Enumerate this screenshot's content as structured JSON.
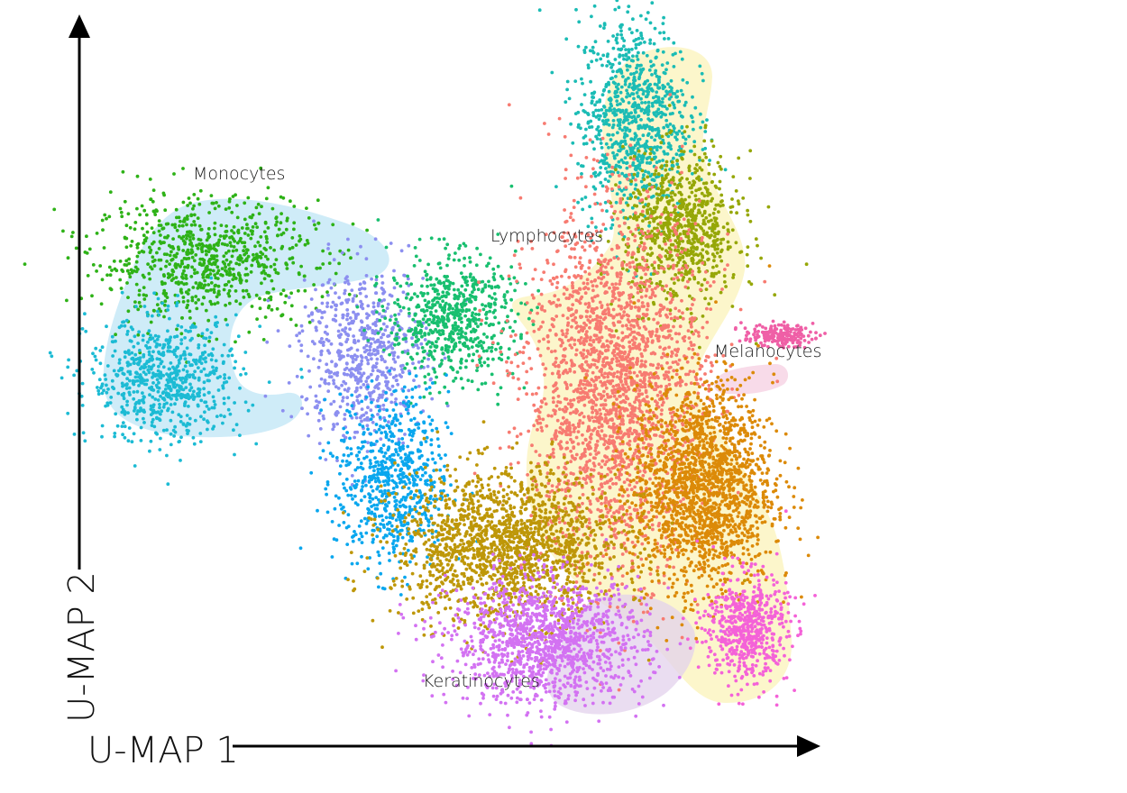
{
  "chart_data": {
    "type": "scatter",
    "title": "",
    "xlabel": "U-MAP 1",
    "ylabel": "U-MAP 2",
    "xlim": [
      0,
      100
    ],
    "ylim": [
      0,
      100
    ],
    "grid": false,
    "legend": "none",
    "annotations": [
      {
        "text": "Monocytes",
        "x": 15.6,
        "y": 79.2
      },
      {
        "text": "Lymphocytes",
        "x": 55.9,
        "y": 70.4
      },
      {
        "text": "Melanocytes",
        "x": 88.8,
        "y": 56.8
      },
      {
        "text": "Keratinocytes",
        "x": 48.1,
        "y": 9.3
      }
    ],
    "series": [
      {
        "color": "#2eb217",
        "center": [
          15.3,
          67.3
        ],
        "spread": [
          8.0,
          4.5
        ],
        "count": 800
      },
      {
        "color": "#1cbbd4",
        "center": [
          9.5,
          49.8
        ],
        "spread": [
          5.5,
          4.5
        ],
        "count": 700
      },
      {
        "color": "#8c8ff0",
        "center": [
          38.0,
          53.6
        ],
        "spread": [
          4.5,
          6.5
        ],
        "count": 650
      },
      {
        "color": "#18bf6f",
        "center": [
          50.8,
          58.8
        ],
        "spread": [
          4.5,
          4.5
        ],
        "count": 650
      },
      {
        "color": "#0aa7ee",
        "center": [
          42.3,
          35.0
        ],
        "spread": [
          4.0,
          6.5
        ],
        "count": 700
      },
      {
        "color": "#1bbcb5",
        "center": [
          77.0,
          88.0
        ],
        "spread": [
          4.0,
          7.5
        ],
        "count": 900
      },
      {
        "color": "#96a707",
        "center": [
          83.9,
          71.7
        ],
        "spread": [
          4.2,
          5.5
        ],
        "count": 800
      },
      {
        "color": "#f77b71",
        "center": [
          74.4,
          48.5
        ],
        "spread": [
          6.5,
          13.0
        ],
        "count": 2400
      },
      {
        "color": "#dc8a08",
        "center": [
          87.0,
          34.3
        ],
        "spread": [
          5.0,
          7.5
        ],
        "count": 1800
      },
      {
        "color": "#be9708",
        "center": [
          58.7,
          25.5
        ],
        "spread": [
          8.0,
          5.5
        ],
        "count": 1700
      },
      {
        "color": "#d372f2",
        "center": [
          64.6,
          11.6
        ],
        "spread": [
          7.0,
          4.5
        ],
        "count": 1300
      },
      {
        "color": "#f462d8",
        "center": [
          93.2,
          13.5
        ],
        "spread": [
          3.0,
          4.0
        ],
        "count": 600
      },
      {
        "color": "#ef5fa6",
        "center": [
          97.7,
          56.3
        ],
        "spread": [
          2.5,
          0.8
        ],
        "count": 180
      }
    ],
    "regions": [
      {
        "name": "monocytes-region",
        "color": "#bfe6f5"
      },
      {
        "name": "lymphocytes-region",
        "color": "#fbf3b9"
      },
      {
        "name": "melanocytes-region",
        "color": "#f6cfe2"
      },
      {
        "name": "keratinocytes-region",
        "color": "#e3d2ec"
      }
    ]
  }
}
